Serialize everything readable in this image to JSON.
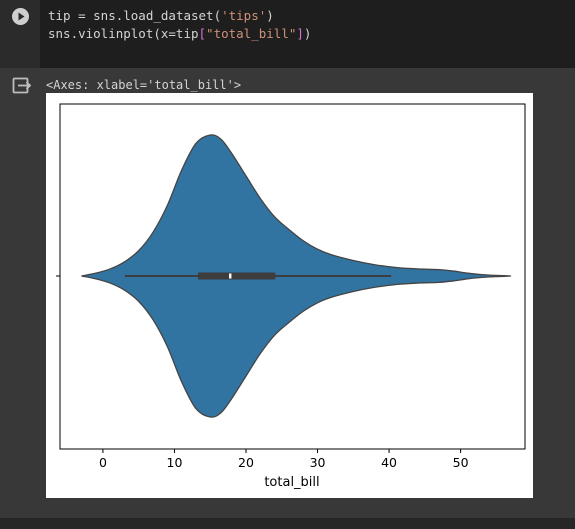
{
  "code_cell": {
    "line1": {
      "var": "tip",
      "op": " = ",
      "call": "sns.load_dataset(",
      "arg": "'tips'",
      "close": ")"
    },
    "line2": {
      "call": "sns.violinplot(x=tip",
      "open_bracket": "[",
      "arg": "\"total_bill\"",
      "close_bracket": "]",
      "close": ")"
    }
  },
  "output": {
    "repr_text": "<Axes: xlabel='total_bill'>"
  },
  "colors": {
    "violin_fill": "#3274a1",
    "violin_edge": "#444444",
    "box": "#3d3d3d",
    "median": "#ffffff"
  },
  "chart_data": {
    "type": "violin",
    "orientation": "horizontal",
    "xlabel": "total_bill",
    "ylabel": "",
    "xlim": [
      -6,
      59
    ],
    "xticks": [
      0,
      10,
      20,
      30,
      40,
      50
    ],
    "density": [
      {
        "x": -3.0,
        "d": 0.0
      },
      {
        "x": -1.0,
        "d": 0.02
      },
      {
        "x": 1.0,
        "d": 0.05
      },
      {
        "x": 3.0,
        "d": 0.1
      },
      {
        "x": 5.0,
        "d": 0.18
      },
      {
        "x": 7.0,
        "d": 0.31
      },
      {
        "x": 9.0,
        "d": 0.5
      },
      {
        "x": 11.0,
        "d": 0.75
      },
      {
        "x": 13.0,
        "d": 0.94
      },
      {
        "x": 15.0,
        "d": 1.0
      },
      {
        "x": 16.5,
        "d": 0.97
      },
      {
        "x": 18.0,
        "d": 0.87
      },
      {
        "x": 20.0,
        "d": 0.71
      },
      {
        "x": 22.0,
        "d": 0.55
      },
      {
        "x": 24.0,
        "d": 0.42
      },
      {
        "x": 26.0,
        "d": 0.33
      },
      {
        "x": 28.0,
        "d": 0.25
      },
      {
        "x": 30.0,
        "d": 0.19
      },
      {
        "x": 32.0,
        "d": 0.15
      },
      {
        "x": 35.0,
        "d": 0.11
      },
      {
        "x": 38.0,
        "d": 0.08
      },
      {
        "x": 41.0,
        "d": 0.06
      },
      {
        "x": 44.0,
        "d": 0.05
      },
      {
        "x": 47.0,
        "d": 0.045
      },
      {
        "x": 49.0,
        "d": 0.035
      },
      {
        "x": 51.0,
        "d": 0.02
      },
      {
        "x": 53.0,
        "d": 0.01
      },
      {
        "x": 55.0,
        "d": 0.004
      },
      {
        "x": 57.0,
        "d": 0.0
      }
    ],
    "box": {
      "q1": 13.3,
      "median": 17.8,
      "q3": 24.1,
      "whisker_low": 3.07,
      "whisker_high": 40.3
    }
  }
}
